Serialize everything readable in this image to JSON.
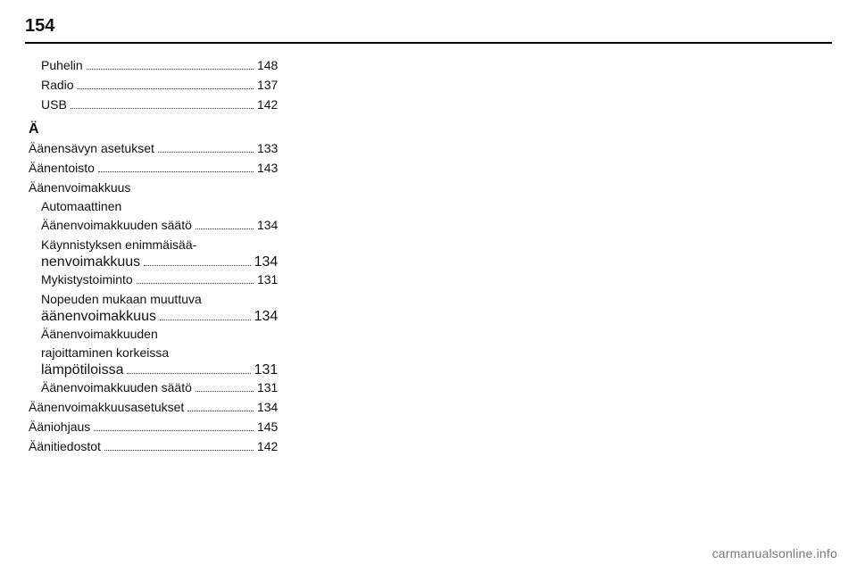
{
  "page_number": "154",
  "watermark": "carmanualsonline.info",
  "section_letter": "Ä",
  "top_entries": [
    {
      "label": "Puhelin",
      "page": "148",
      "indent": 1
    },
    {
      "label": "Radio",
      "page": "137",
      "indent": 1
    },
    {
      "label": "USB",
      "page": "142",
      "indent": 1
    }
  ],
  "a_entries": [
    {
      "type": "single",
      "label": "Äänensävyn asetukset",
      "page": "133",
      "indent": 0
    },
    {
      "type": "single",
      "label": "Äänentoisto",
      "page": "143",
      "indent": 0
    },
    {
      "type": "header",
      "label": "Äänenvoimakkuus",
      "indent": 0
    },
    {
      "type": "header",
      "label": "Automaattinen",
      "indent": 1
    },
    {
      "type": "single",
      "label": "Äänenvoimakkuuden säätö",
      "page": "134",
      "indent": 1
    },
    {
      "type": "multi",
      "line1": "Käynnistyksen enimmäisää‐",
      "line2": "nenvoimakkuus",
      "page": "134",
      "indent": 1
    },
    {
      "type": "single",
      "label": "Mykistystoiminto",
      "page": "131",
      "indent": 1
    },
    {
      "type": "multi",
      "line1": "Nopeuden mukaan muuttuva",
      "line2": "äänenvoimakkuus",
      "page": "134",
      "indent": 1
    },
    {
      "type": "header",
      "label": "Äänenvoimakkuuden",
      "indent": 1
    },
    {
      "type": "multi",
      "line1": "rajoittaminen korkeissa",
      "line2": "lämpötiloissa",
      "page": "131",
      "indent": 1
    },
    {
      "type": "single",
      "label": "Äänenvoimakkuuden säätö",
      "page": "131",
      "indent": 1
    },
    {
      "type": "single",
      "label": "Äänenvoimakkuusasetukset",
      "page": "134",
      "indent": 0
    },
    {
      "type": "single",
      "label": "Ääniohjaus",
      "page": "145",
      "indent": 0
    },
    {
      "type": "single",
      "label": "Äänitiedostot",
      "page": "142",
      "indent": 0
    }
  ]
}
